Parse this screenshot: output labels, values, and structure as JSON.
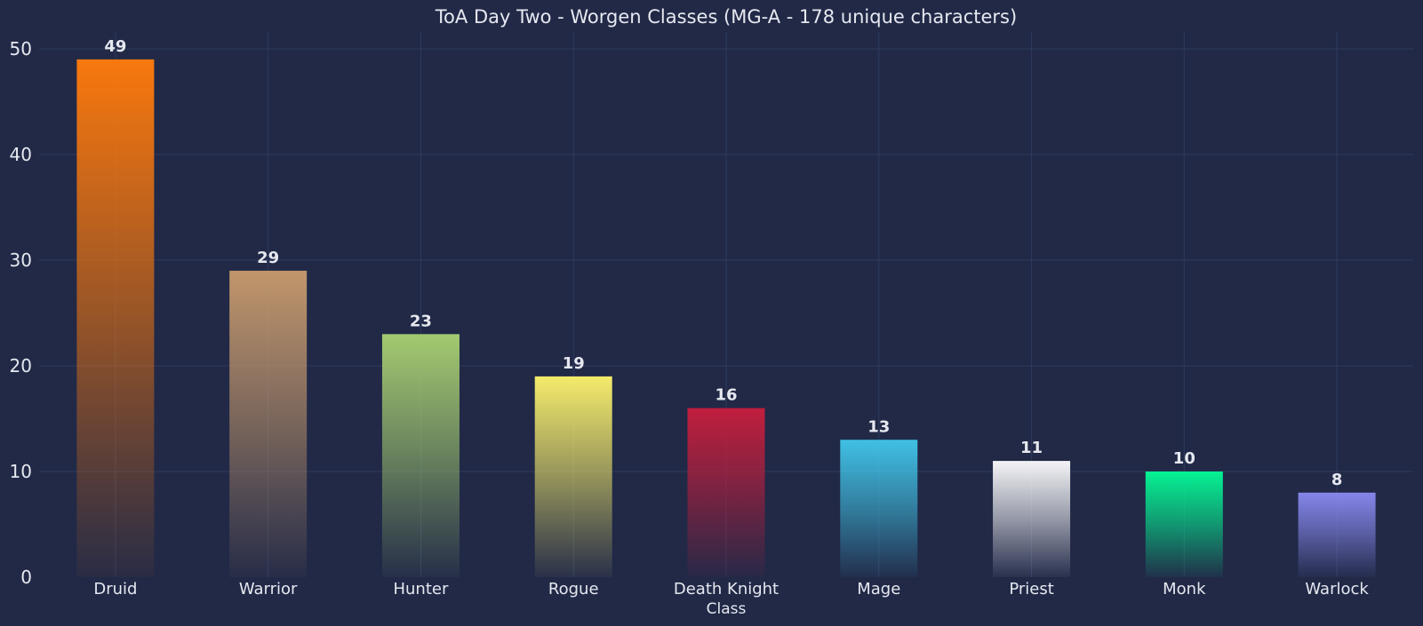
{
  "chart_data": {
    "type": "bar",
    "title": "ToA Day Two - Worgen Classes (MG-A - 178 unique characters)",
    "xlabel": "Class",
    "ylabel": "",
    "categories": [
      "Druid",
      "Warrior",
      "Hunter",
      "Rogue",
      "Death Knight",
      "Mage",
      "Priest",
      "Monk",
      "Warlock"
    ],
    "values": [
      49,
      29,
      23,
      19,
      16,
      13,
      11,
      10,
      8
    ],
    "colors": [
      "#F8780E",
      "#C1966C",
      "#A3CA70",
      "#F4EB6B",
      "#C11E3D",
      "#40C1E5",
      "#F4F4F6",
      "#05F293",
      "#8686EA"
    ],
    "ylim": [
      0,
      51.5
    ],
    "yticks": [
      0,
      10,
      20,
      30,
      40,
      50
    ],
    "grid": true,
    "legend": "none",
    "background": "#212947",
    "grid_color": "#2E3A5E",
    "text_color": "#E6E8EF"
  }
}
